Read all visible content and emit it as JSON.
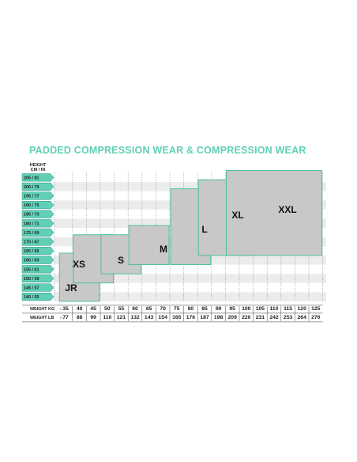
{
  "chart_data": {
    "type": "table",
    "title": "PADDED COMPRESSION WEAR & COMPRESSION WEAR",
    "height_header": [
      "HEIGHT",
      "CM / IN"
    ],
    "heights": [
      "205 / 81",
      "200 / 79",
      "195 / 77",
      "190 / 75",
      "185 / 73",
      "180 / 71",
      "175 / 69",
      "170 / 67",
      "165 / 65",
      "160 / 63",
      "155 / 61",
      "150 / 59",
      "145 / 57",
      "140 / 55"
    ],
    "weight_kg_label": "WEIGHT KG",
    "weight_lb_label": "WEIGHT LB",
    "weights_kg": [
      "35",
      "40",
      "45",
      "50",
      "55",
      "60",
      "65",
      "70",
      "75",
      "80",
      "85",
      "90",
      "95",
      "100",
      "105",
      "110",
      "115",
      "120",
      "125"
    ],
    "weights_lb": [
      "77",
      "88",
      "99",
      "110",
      "121",
      "132",
      "143",
      "154",
      "165",
      "176",
      "187",
      "198",
      "209",
      "220",
      "231",
      "242",
      "253",
      "264",
      "276"
    ],
    "sizes": [
      {
        "label": "JR",
        "kg_min": 35,
        "kg_max": 45,
        "cm_min": 140,
        "cm_max": 160
      },
      {
        "label": "XS",
        "kg_min": 40,
        "kg_max": 50,
        "cm_min": 150,
        "cm_max": 170
      },
      {
        "label": "S",
        "kg_min": 50,
        "kg_max": 60,
        "cm_min": 155,
        "cm_max": 170
      },
      {
        "label": "M",
        "kg_min": 60,
        "kg_max": 70,
        "cm_min": 160,
        "cm_max": 175
      },
      {
        "label": "L",
        "kg_min": 75,
        "kg_max": 85,
        "cm_min": 160,
        "cm_max": 195
      },
      {
        "label": "XL",
        "kg_min": 85,
        "kg_max": 100,
        "cm_min": 165,
        "cm_max": 200
      },
      {
        "label": "XXL",
        "kg_min": 95,
        "kg_max": 125,
        "cm_min": 165,
        "cm_max": 205
      }
    ],
    "colors": {
      "accent": "#5fd0b7",
      "box_fill": "#c8c8c8",
      "box_border": "#3fbf9e",
      "row_band": "#ececec"
    }
  }
}
